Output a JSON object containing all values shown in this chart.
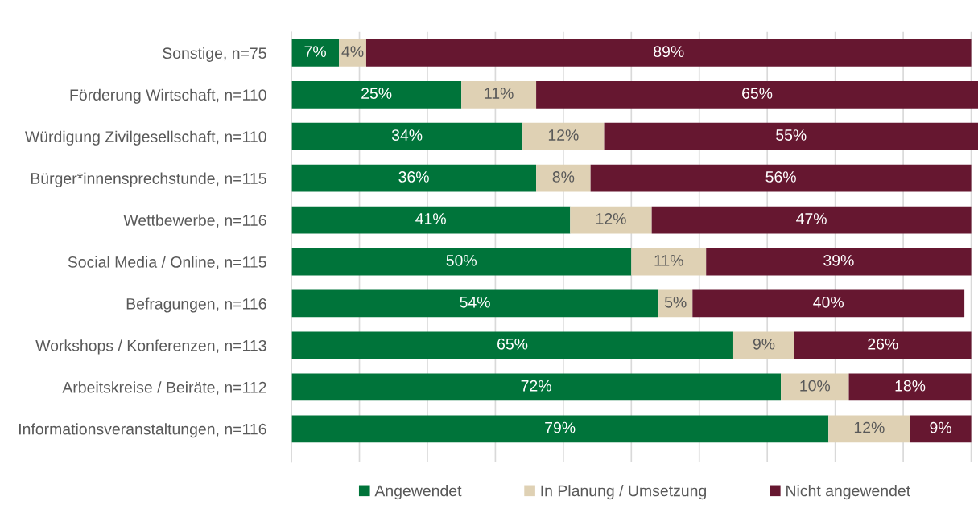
{
  "chart_data": {
    "type": "bar",
    "orientation": "horizontal",
    "stacked": true,
    "categories": [
      "Sonstige, n=75",
      "Förderung Wirtschaft, n=110",
      "Würdigung Zivilgesellschaft, n=110",
      "Bürger*innensprechstunde, n=115",
      "Wettbewerbe, n=116",
      "Social Media / Online, n=115",
      "Befragungen, n=116",
      "Workshops / Konferenzen, n=113",
      "Arbeitskreise / Beiräte, n=112",
      "Informationsveranstaltungen, n=116"
    ],
    "series": [
      {
        "name": "Angewendet",
        "color": "#00743a",
        "values": [
          7,
          25,
          34,
          36,
          41,
          50,
          54,
          65,
          72,
          79
        ],
        "value_labels": [
          "7%",
          "25%",
          "34%",
          "36%",
          "41%",
          "50%",
          "54%",
          "65%",
          "72%",
          "79%"
        ]
      },
      {
        "name": "In Planung / Umsetzung",
        "color": "#dfd1b4",
        "values": [
          4,
          11,
          12,
          8,
          12,
          11,
          5,
          9,
          10,
          12
        ],
        "value_labels": [
          "4%",
          "11%",
          "12%",
          "8%",
          "12%",
          "11%",
          "5%",
          "9%",
          "10%",
          "12%"
        ]
      },
      {
        "name": "Nicht angewendet",
        "color": "#661730",
        "values": [
          89,
          65,
          55,
          56,
          47,
          39,
          40,
          26,
          18,
          9
        ],
        "value_labels": [
          "89%",
          "65%",
          "55%",
          "56%",
          "47%",
          "39%",
          "40%",
          "26%",
          "18%",
          "9%"
        ]
      }
    ],
    "xlim": [
      0,
      101
    ],
    "xticks": [
      {
        "value": 0,
        "label": null
      },
      {
        "value": 10,
        "label": null
      },
      {
        "value": 20,
        "label": null
      },
      {
        "value": 30,
        "label": null
      },
      {
        "value": 40,
        "label": null
      },
      {
        "value": 50,
        "label": null
      },
      {
        "value": 60,
        "label": null
      },
      {
        "value": 70,
        "label": null
      },
      {
        "value": 80,
        "label": null
      },
      {
        "value": 90,
        "label": null
      },
      {
        "value": 100,
        "label": null
      }
    ],
    "tick_labels": "y",
    "grid": "x",
    "legend": "bottom"
  }
}
